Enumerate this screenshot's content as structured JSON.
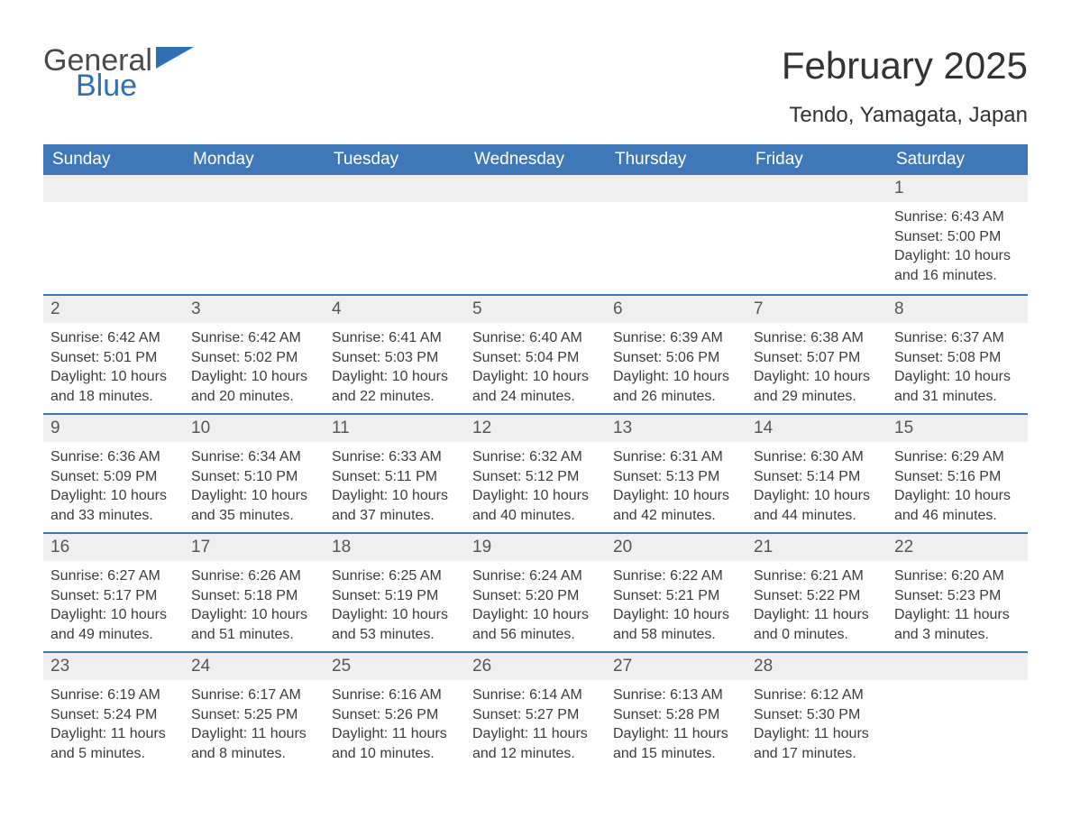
{
  "logo": {
    "text1": "General",
    "text2": "Blue",
    "accent_color": "#2f6fb3",
    "text_color": "#4a4a4a"
  },
  "title": "February 2025",
  "location": "Tendo, Yamagata, Japan",
  "colors": {
    "header_bg": "#3e78b9",
    "header_text": "#ffffff",
    "daynum_bg": "#efefef",
    "row_border": "#3e78b9",
    "body_text": "#3c3c3c",
    "bg": "#ffffff"
  },
  "weekdays": [
    "Sunday",
    "Monday",
    "Tuesday",
    "Wednesday",
    "Thursday",
    "Friday",
    "Saturday"
  ],
  "weeks": [
    [
      null,
      null,
      null,
      null,
      null,
      null,
      {
        "n": "1",
        "sunrise": "6:43 AM",
        "sunset": "5:00 PM",
        "daylight": "10 hours and 16 minutes."
      }
    ],
    [
      {
        "n": "2",
        "sunrise": "6:42 AM",
        "sunset": "5:01 PM",
        "daylight": "10 hours and 18 minutes."
      },
      {
        "n": "3",
        "sunrise": "6:42 AM",
        "sunset": "5:02 PM",
        "daylight": "10 hours and 20 minutes."
      },
      {
        "n": "4",
        "sunrise": "6:41 AM",
        "sunset": "5:03 PM",
        "daylight": "10 hours and 22 minutes."
      },
      {
        "n": "5",
        "sunrise": "6:40 AM",
        "sunset": "5:04 PM",
        "daylight": "10 hours and 24 minutes."
      },
      {
        "n": "6",
        "sunrise": "6:39 AM",
        "sunset": "5:06 PM",
        "daylight": "10 hours and 26 minutes."
      },
      {
        "n": "7",
        "sunrise": "6:38 AM",
        "sunset": "5:07 PM",
        "daylight": "10 hours and 29 minutes."
      },
      {
        "n": "8",
        "sunrise": "6:37 AM",
        "sunset": "5:08 PM",
        "daylight": "10 hours and 31 minutes."
      }
    ],
    [
      {
        "n": "9",
        "sunrise": "6:36 AM",
        "sunset": "5:09 PM",
        "daylight": "10 hours and 33 minutes."
      },
      {
        "n": "10",
        "sunrise": "6:34 AM",
        "sunset": "5:10 PM",
        "daylight": "10 hours and 35 minutes."
      },
      {
        "n": "11",
        "sunrise": "6:33 AM",
        "sunset": "5:11 PM",
        "daylight": "10 hours and 37 minutes."
      },
      {
        "n": "12",
        "sunrise": "6:32 AM",
        "sunset": "5:12 PM",
        "daylight": "10 hours and 40 minutes."
      },
      {
        "n": "13",
        "sunrise": "6:31 AM",
        "sunset": "5:13 PM",
        "daylight": "10 hours and 42 minutes."
      },
      {
        "n": "14",
        "sunrise": "6:30 AM",
        "sunset": "5:14 PM",
        "daylight": "10 hours and 44 minutes."
      },
      {
        "n": "15",
        "sunrise": "6:29 AM",
        "sunset": "5:16 PM",
        "daylight": "10 hours and 46 minutes."
      }
    ],
    [
      {
        "n": "16",
        "sunrise": "6:27 AM",
        "sunset": "5:17 PM",
        "daylight": "10 hours and 49 minutes."
      },
      {
        "n": "17",
        "sunrise": "6:26 AM",
        "sunset": "5:18 PM",
        "daylight": "10 hours and 51 minutes."
      },
      {
        "n": "18",
        "sunrise": "6:25 AM",
        "sunset": "5:19 PM",
        "daylight": "10 hours and 53 minutes."
      },
      {
        "n": "19",
        "sunrise": "6:24 AM",
        "sunset": "5:20 PM",
        "daylight": "10 hours and 56 minutes."
      },
      {
        "n": "20",
        "sunrise": "6:22 AM",
        "sunset": "5:21 PM",
        "daylight": "10 hours and 58 minutes."
      },
      {
        "n": "21",
        "sunrise": "6:21 AM",
        "sunset": "5:22 PM",
        "daylight": "11 hours and 0 minutes."
      },
      {
        "n": "22",
        "sunrise": "6:20 AM",
        "sunset": "5:23 PM",
        "daylight": "11 hours and 3 minutes."
      }
    ],
    [
      {
        "n": "23",
        "sunrise": "6:19 AM",
        "sunset": "5:24 PM",
        "daylight": "11 hours and 5 minutes."
      },
      {
        "n": "24",
        "sunrise": "6:17 AM",
        "sunset": "5:25 PM",
        "daylight": "11 hours and 8 minutes."
      },
      {
        "n": "25",
        "sunrise": "6:16 AM",
        "sunset": "5:26 PM",
        "daylight": "11 hours and 10 minutes."
      },
      {
        "n": "26",
        "sunrise": "6:14 AM",
        "sunset": "5:27 PM",
        "daylight": "11 hours and 12 minutes."
      },
      {
        "n": "27",
        "sunrise": "6:13 AM",
        "sunset": "5:28 PM",
        "daylight": "11 hours and 15 minutes."
      },
      {
        "n": "28",
        "sunrise": "6:12 AM",
        "sunset": "5:30 PM",
        "daylight": "11 hours and 17 minutes."
      },
      null
    ]
  ],
  "labels": {
    "sunrise": "Sunrise:",
    "sunset": "Sunset:",
    "daylight": "Daylight:"
  }
}
